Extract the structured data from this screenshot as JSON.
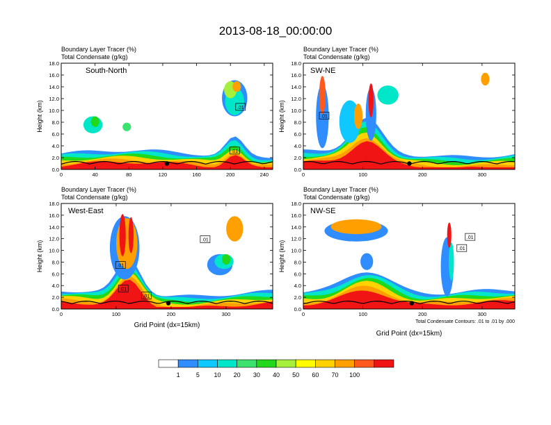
{
  "title": "2013-08-18_00:00:00",
  "colorbar": {
    "ticks": [
      "1",
      "5",
      "10",
      "20",
      "30",
      "40",
      "50",
      "60",
      "70",
      "100"
    ],
    "colors": [
      "#ffffff",
      "#2f8dff",
      "#0ec8ff",
      "#00e6c8",
      "#3be36e",
      "#21d81a",
      "#a6f03c",
      "#fffb00",
      "#ffd200",
      "#ffa000",
      "#ff5a1e",
      "#f01414"
    ]
  },
  "chart_data": [
    {
      "type": "heatmap",
      "panel": "South-North",
      "header1": "Boundary Layer Tracer   (%)",
      "header2": "Total Condensate   (g/kg)",
      "ylabel": "Height (km)",
      "xlabel": "",
      "xlim": [
        0,
        250
      ],
      "ylim": [
        0,
        18
      ],
      "xticks": [
        "0",
        "40",
        "80",
        "120",
        "160",
        "200",
        "240"
      ],
      "yticks": [
        "0.0",
        "2.0",
        "4.0",
        "6.0",
        "8.0",
        "10.0",
        "12.0",
        "14.0",
        "16.0",
        "18.0"
      ],
      "contour_labels": [
        ".01",
        ".01"
      ],
      "contour_label_pos": [
        [
          212,
          10.6
        ],
        [
          205,
          3.2
        ]
      ],
      "surface_dot": [
        125,
        1.0
      ]
    },
    {
      "type": "heatmap",
      "panel": "SW-NE",
      "header1": "Boundary Layer Tracer   (%)",
      "header2": "Total Condensate   (g/kg)",
      "ylabel": "Height (km)",
      "xlabel": "",
      "xlim": [
        0,
        355
      ],
      "ylim": [
        0,
        18
      ],
      "xticks": [
        "0",
        "100",
        "200",
        "300"
      ],
      "yticks": [
        "0.0",
        "2.0",
        "4.0",
        "6.0",
        "8.0",
        "10.0",
        "12.0",
        "14.0",
        "16.0",
        "18.0"
      ],
      "contour_labels": [
        ".01"
      ],
      "contour_label_pos": [
        [
          35,
          9.1
        ]
      ],
      "surface_dot": [
        178,
        1.0
      ]
    },
    {
      "type": "heatmap",
      "panel": "West-East",
      "header1": "Boundary Layer Tracer   (%)",
      "header2": "Total Condensate   (g/kg)",
      "ylabel": "Height (km)",
      "xlabel": "Grid Point (dx=15km)",
      "xlim": [
        0,
        385
      ],
      "ylim": [
        0,
        18
      ],
      "xticks": [
        "0",
        "100",
        "200",
        "300"
      ],
      "yticks": [
        "0.0",
        "2.0",
        "4.0",
        "6.0",
        "8.0",
        "10.0",
        "12.0",
        "14.0",
        "16.0",
        "18.0"
      ],
      "contour_labels": [
        ".01",
        ".01",
        ".01",
        ".01"
      ],
      "contour_label_pos": [
        [
          262,
          11.9
        ],
        [
          108,
          7.5
        ],
        [
          113,
          3.5
        ],
        [
          155,
          2.3
        ]
      ],
      "surface_dot": [
        195,
        1.0
      ]
    },
    {
      "type": "heatmap",
      "panel": "NW-SE",
      "header1": "Boundary Layer Tracer   (%)",
      "header2": "Total Condensate   (g/kg)",
      "ylabel": "Height (km)",
      "xlabel": "Grid Point (dx=15km)",
      "xlim": [
        0,
        355
      ],
      "ylim": [
        0,
        18
      ],
      "xticks": [
        "0",
        "100",
        "200",
        "300"
      ],
      "yticks": [
        "0.0",
        "2.0",
        "4.0",
        "6.0",
        "8.0",
        "10.0",
        "12.0",
        "14.0",
        "16.0",
        "18.0"
      ],
      "contour_labels": [
        ".01",
        ".01"
      ],
      "contour_label_pos": [
        [
          280,
          12.3
        ],
        [
          266,
          10.4
        ]
      ],
      "surface_dot": [
        182,
        1.0
      ],
      "footnote": "Total Condensate Contours: .01 to .01 by .000"
    }
  ]
}
